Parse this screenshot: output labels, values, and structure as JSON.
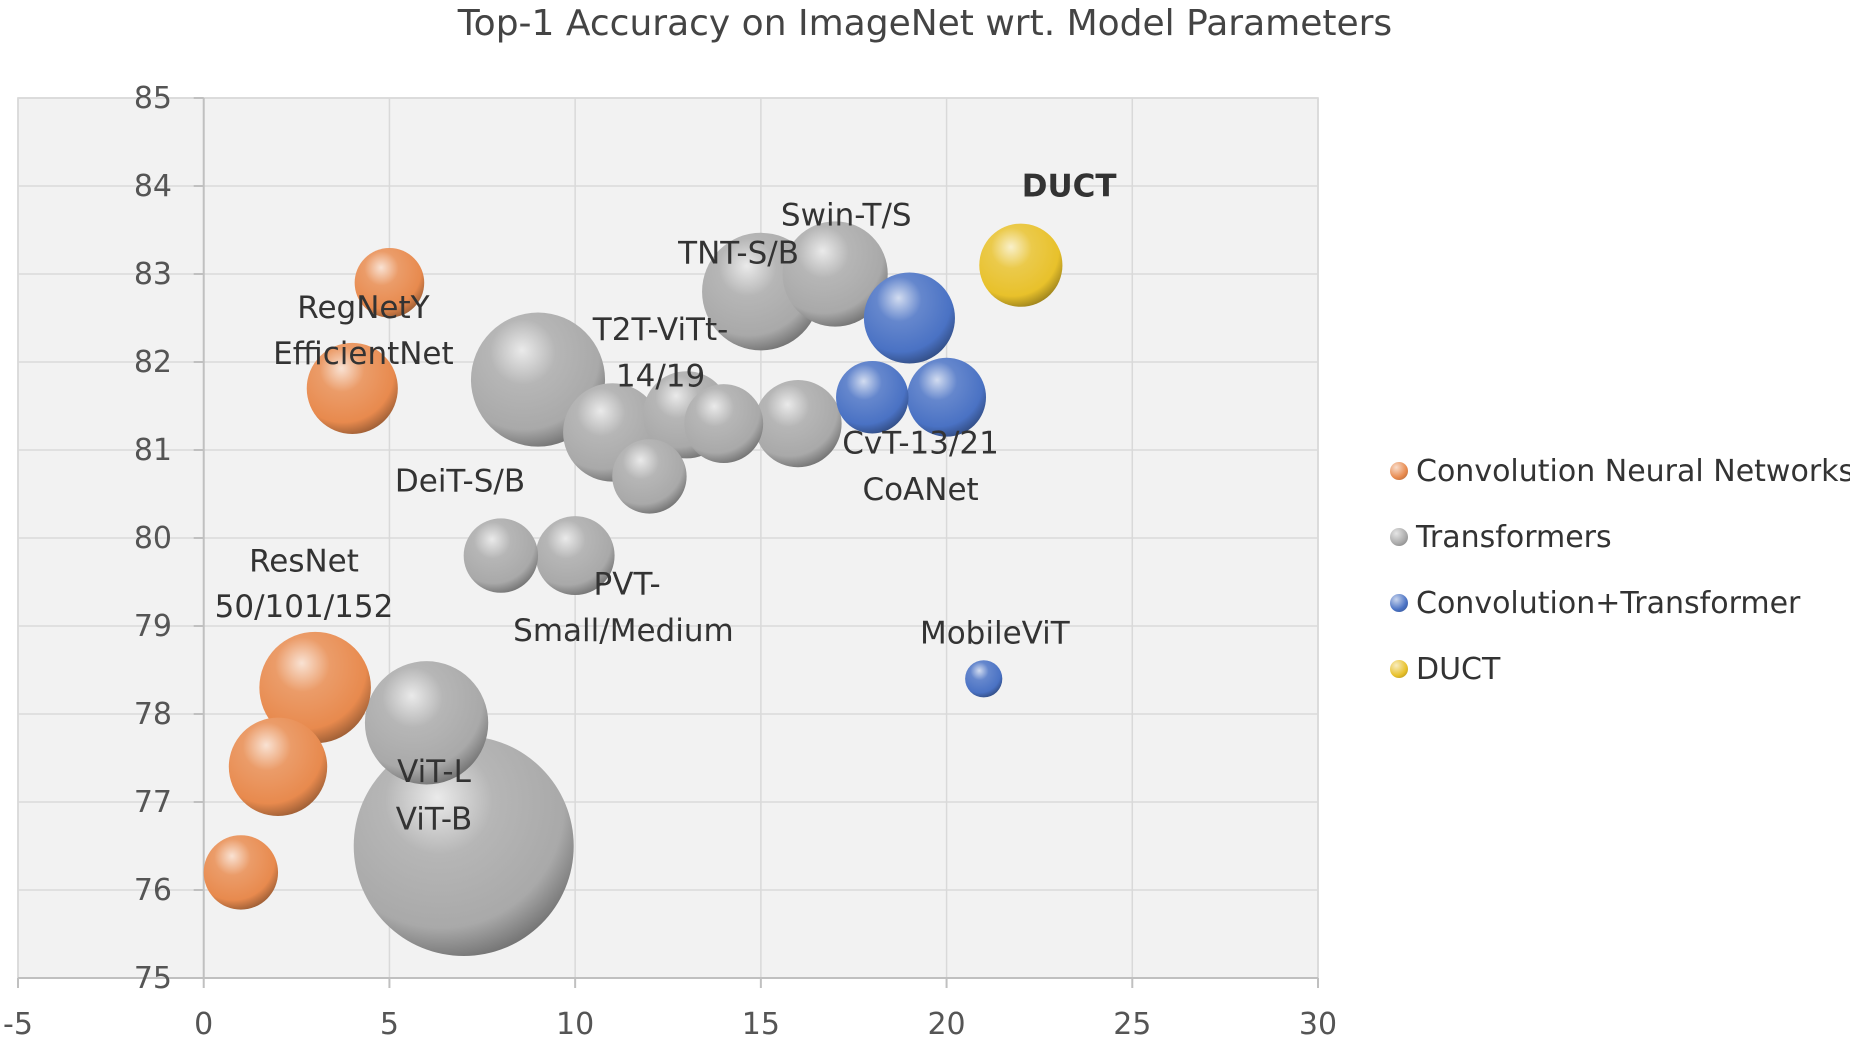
{
  "chart_data": {
    "type": "scatter",
    "title": "Top-1 Accuracy on ImageNet wrt. Model Parameters",
    "xlabel": "",
    "ylabel": "",
    "xlim": [
      -5,
      30
    ],
    "ylim": [
      75,
      85
    ],
    "x_ticks": [
      "-5",
      "0",
      "5",
      "10",
      "15",
      "20",
      "25",
      "30"
    ],
    "y_ticks": [
      "75",
      "76",
      "77",
      "78",
      "79",
      "80",
      "81",
      "82",
      "83",
      "84",
      "85"
    ],
    "grid": true,
    "legend_position": "right",
    "series": [
      {
        "name": "Convolution Neural Networks",
        "color": "#e88a4e",
        "points": [
          {
            "x": 1,
            "y": 76.2,
            "size": 4
          },
          {
            "x": 2,
            "y": 77.4,
            "size": 7
          },
          {
            "x": 3,
            "y": 78.3,
            "size": 9
          },
          {
            "x": 4,
            "y": 81.7,
            "size": 6
          },
          {
            "x": 5,
            "y": 82.9,
            "size": 3.5
          }
        ]
      },
      {
        "name": "Transformers",
        "color": "#a9a9a9",
        "points": [
          {
            "x": 7,
            "y": 76.5,
            "size": 35
          },
          {
            "x": 6,
            "y": 77.9,
            "size": 11
          },
          {
            "x": 9,
            "y": 81.8,
            "size": 13
          },
          {
            "x": 8,
            "y": 79.8,
            "size": 4
          },
          {
            "x": 10,
            "y": 79.8,
            "size": 4.5
          },
          {
            "x": 11,
            "y": 81.2,
            "size": 7
          },
          {
            "x": 12,
            "y": 80.7,
            "size": 4
          },
          {
            "x": 13,
            "y": 81.4,
            "size": 5.5
          },
          {
            "x": 14,
            "y": 81.3,
            "size": 4.5
          },
          {
            "x": 15,
            "y": 82.8,
            "size": 10
          },
          {
            "x": 16,
            "y": 81.3,
            "size": 5.5
          },
          {
            "x": 17,
            "y": 83.0,
            "size": 8
          }
        ]
      },
      {
        "name": "Convolution+Transformer",
        "color": "#4a72c4",
        "points": [
          {
            "x": 18,
            "y": 81.6,
            "size": 3.8
          },
          {
            "x": 19,
            "y": 82.5,
            "size": 6
          },
          {
            "x": 20,
            "y": 81.6,
            "size": 4.5
          },
          {
            "x": 21,
            "y": 78.4,
            "size": 1
          }
        ]
      },
      {
        "name": "DUCT",
        "color": "#e8c12b",
        "points": [
          {
            "x": 22,
            "y": 83.1,
            "size": 5
          }
        ]
      }
    ],
    "annotations": [
      {
        "text": "RegNetY",
        "x": 4.3,
        "y": 82.5,
        "bold": false
      },
      {
        "text": "EfficientNet",
        "x": 4.3,
        "y": 81.98,
        "bold": false
      },
      {
        "text": "ResNet",
        "x": 2.7,
        "y": 79.62,
        "bold": false
      },
      {
        "text": "50/101/152",
        "x": 2.7,
        "y": 79.1,
        "bold": false
      },
      {
        "text": "ViT-L",
        "x": 6.2,
        "y": 77.23,
        "bold": false
      },
      {
        "text": "ViT-B",
        "x": 6.2,
        "y": 76.69,
        "bold": false
      },
      {
        "text": "DeiT-S/B",
        "x": 6.9,
        "y": 80.53,
        "bold": false
      },
      {
        "text": "PVT-",
        "x": 11.4,
        "y": 79.36,
        "bold": false
      },
      {
        "text": "Small/Medium",
        "x": 11.3,
        "y": 78.83,
        "bold": false
      },
      {
        "text": "T2T-ViTt-",
        "x": 12.3,
        "y": 82.25,
        "bold": false
      },
      {
        "text": "14/19",
        "x": 12.3,
        "y": 81.72,
        "bold": false
      },
      {
        "text": "TNT-S/B",
        "x": 14.4,
        "y": 83.12,
        "bold": false
      },
      {
        "text": "Swin-T/S",
        "x": 17.3,
        "y": 83.55,
        "bold": false
      },
      {
        "text": "CvT-13/21",
        "x": 19.3,
        "y": 80.96,
        "bold": false
      },
      {
        "text": "CoANet",
        "x": 19.3,
        "y": 80.43,
        "bold": false
      },
      {
        "text": "MobileViT",
        "x": 21.3,
        "y": 78.8,
        "bold": false
      },
      {
        "text": "DUCT",
        "x": 23.3,
        "y": 83.88,
        "bold": true
      }
    ]
  }
}
